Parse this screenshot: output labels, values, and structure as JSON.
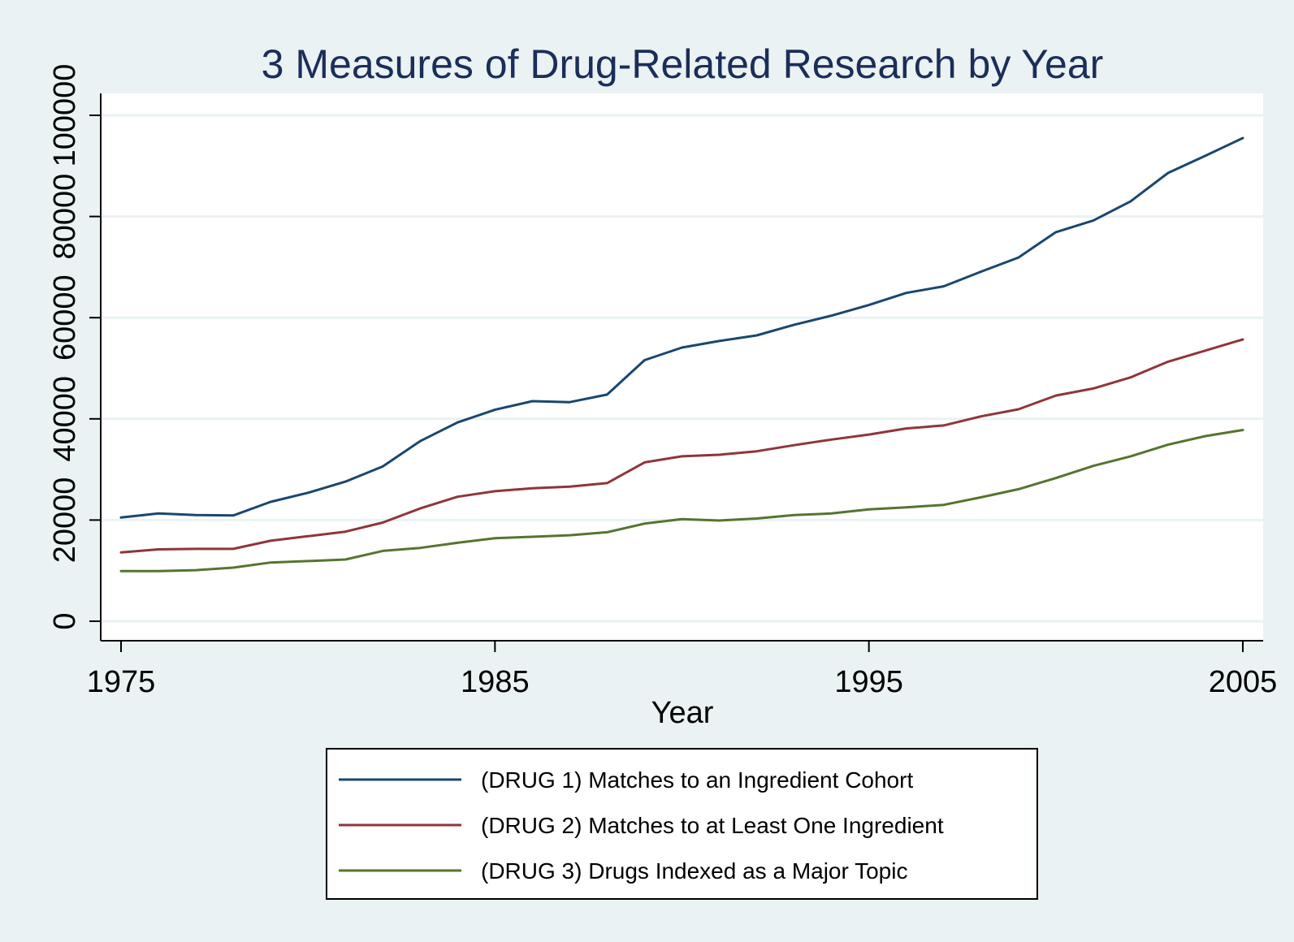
{
  "chart_data": {
    "type": "line",
    "title": "3 Measures of Drug-Related Research by Year",
    "xlabel": "Year",
    "ylabel": "",
    "xlim": [
      1975,
      2005
    ],
    "ylim": [
      0,
      100000
    ],
    "xticks": [
      1975,
      1985,
      1995,
      2005
    ],
    "yticks": [
      0,
      20000,
      40000,
      60000,
      80000,
      100000
    ],
    "grid": true,
    "legend_position": "bottom",
    "x": [
      1975,
      1976,
      1977,
      1978,
      1979,
      1980,
      1981,
      1982,
      1983,
      1984,
      1985,
      1986,
      1987,
      1988,
      1989,
      1990,
      1991,
      1992,
      1993,
      1994,
      1995,
      1996,
      1997,
      1998,
      1999,
      2000,
      2001,
      2002,
      2003,
      2004,
      2005
    ],
    "series": [
      {
        "name": "(DRUG 1) Matches to an Ingredient Cohort",
        "color": "#1a476f",
        "values": [
          20500,
          21300,
          21000,
          20900,
          23600,
          25400,
          27600,
          30600,
          35600,
          39300,
          41800,
          43500,
          43300,
          44800,
          51600,
          54100,
          55400,
          56500,
          58600,
          60400,
          62500,
          64900,
          66200,
          69100,
          71900,
          76900,
          79200,
          83000,
          88600,
          92000,
          95500
        ]
      },
      {
        "name": "(DRUG 2) Matches to at Least One Ingredient",
        "color": "#90353b",
        "values": [
          13600,
          14200,
          14300,
          14300,
          15900,
          16800,
          17700,
          19500,
          22300,
          24600,
          25700,
          26300,
          26600,
          27300,
          31400,
          32600,
          32900,
          33600,
          34800,
          35900,
          36900,
          38100,
          38700,
          40500,
          41900,
          44600,
          46000,
          48200,
          51300,
          53500,
          55700
        ]
      },
      {
        "name": "(DRUG 3) Drugs Indexed as a Major Topic",
        "color": "#55752f",
        "values": [
          9900,
          9900,
          10100,
          10600,
          11600,
          11900,
          12200,
          13900,
          14500,
          15500,
          16400,
          16700,
          17000,
          17600,
          19300,
          20200,
          19900,
          20300,
          21000,
          21300,
          22100,
          22500,
          23000,
          24500,
          26100,
          28300,
          30700,
          32600,
          34900,
          36600,
          37800
        ]
      }
    ]
  }
}
